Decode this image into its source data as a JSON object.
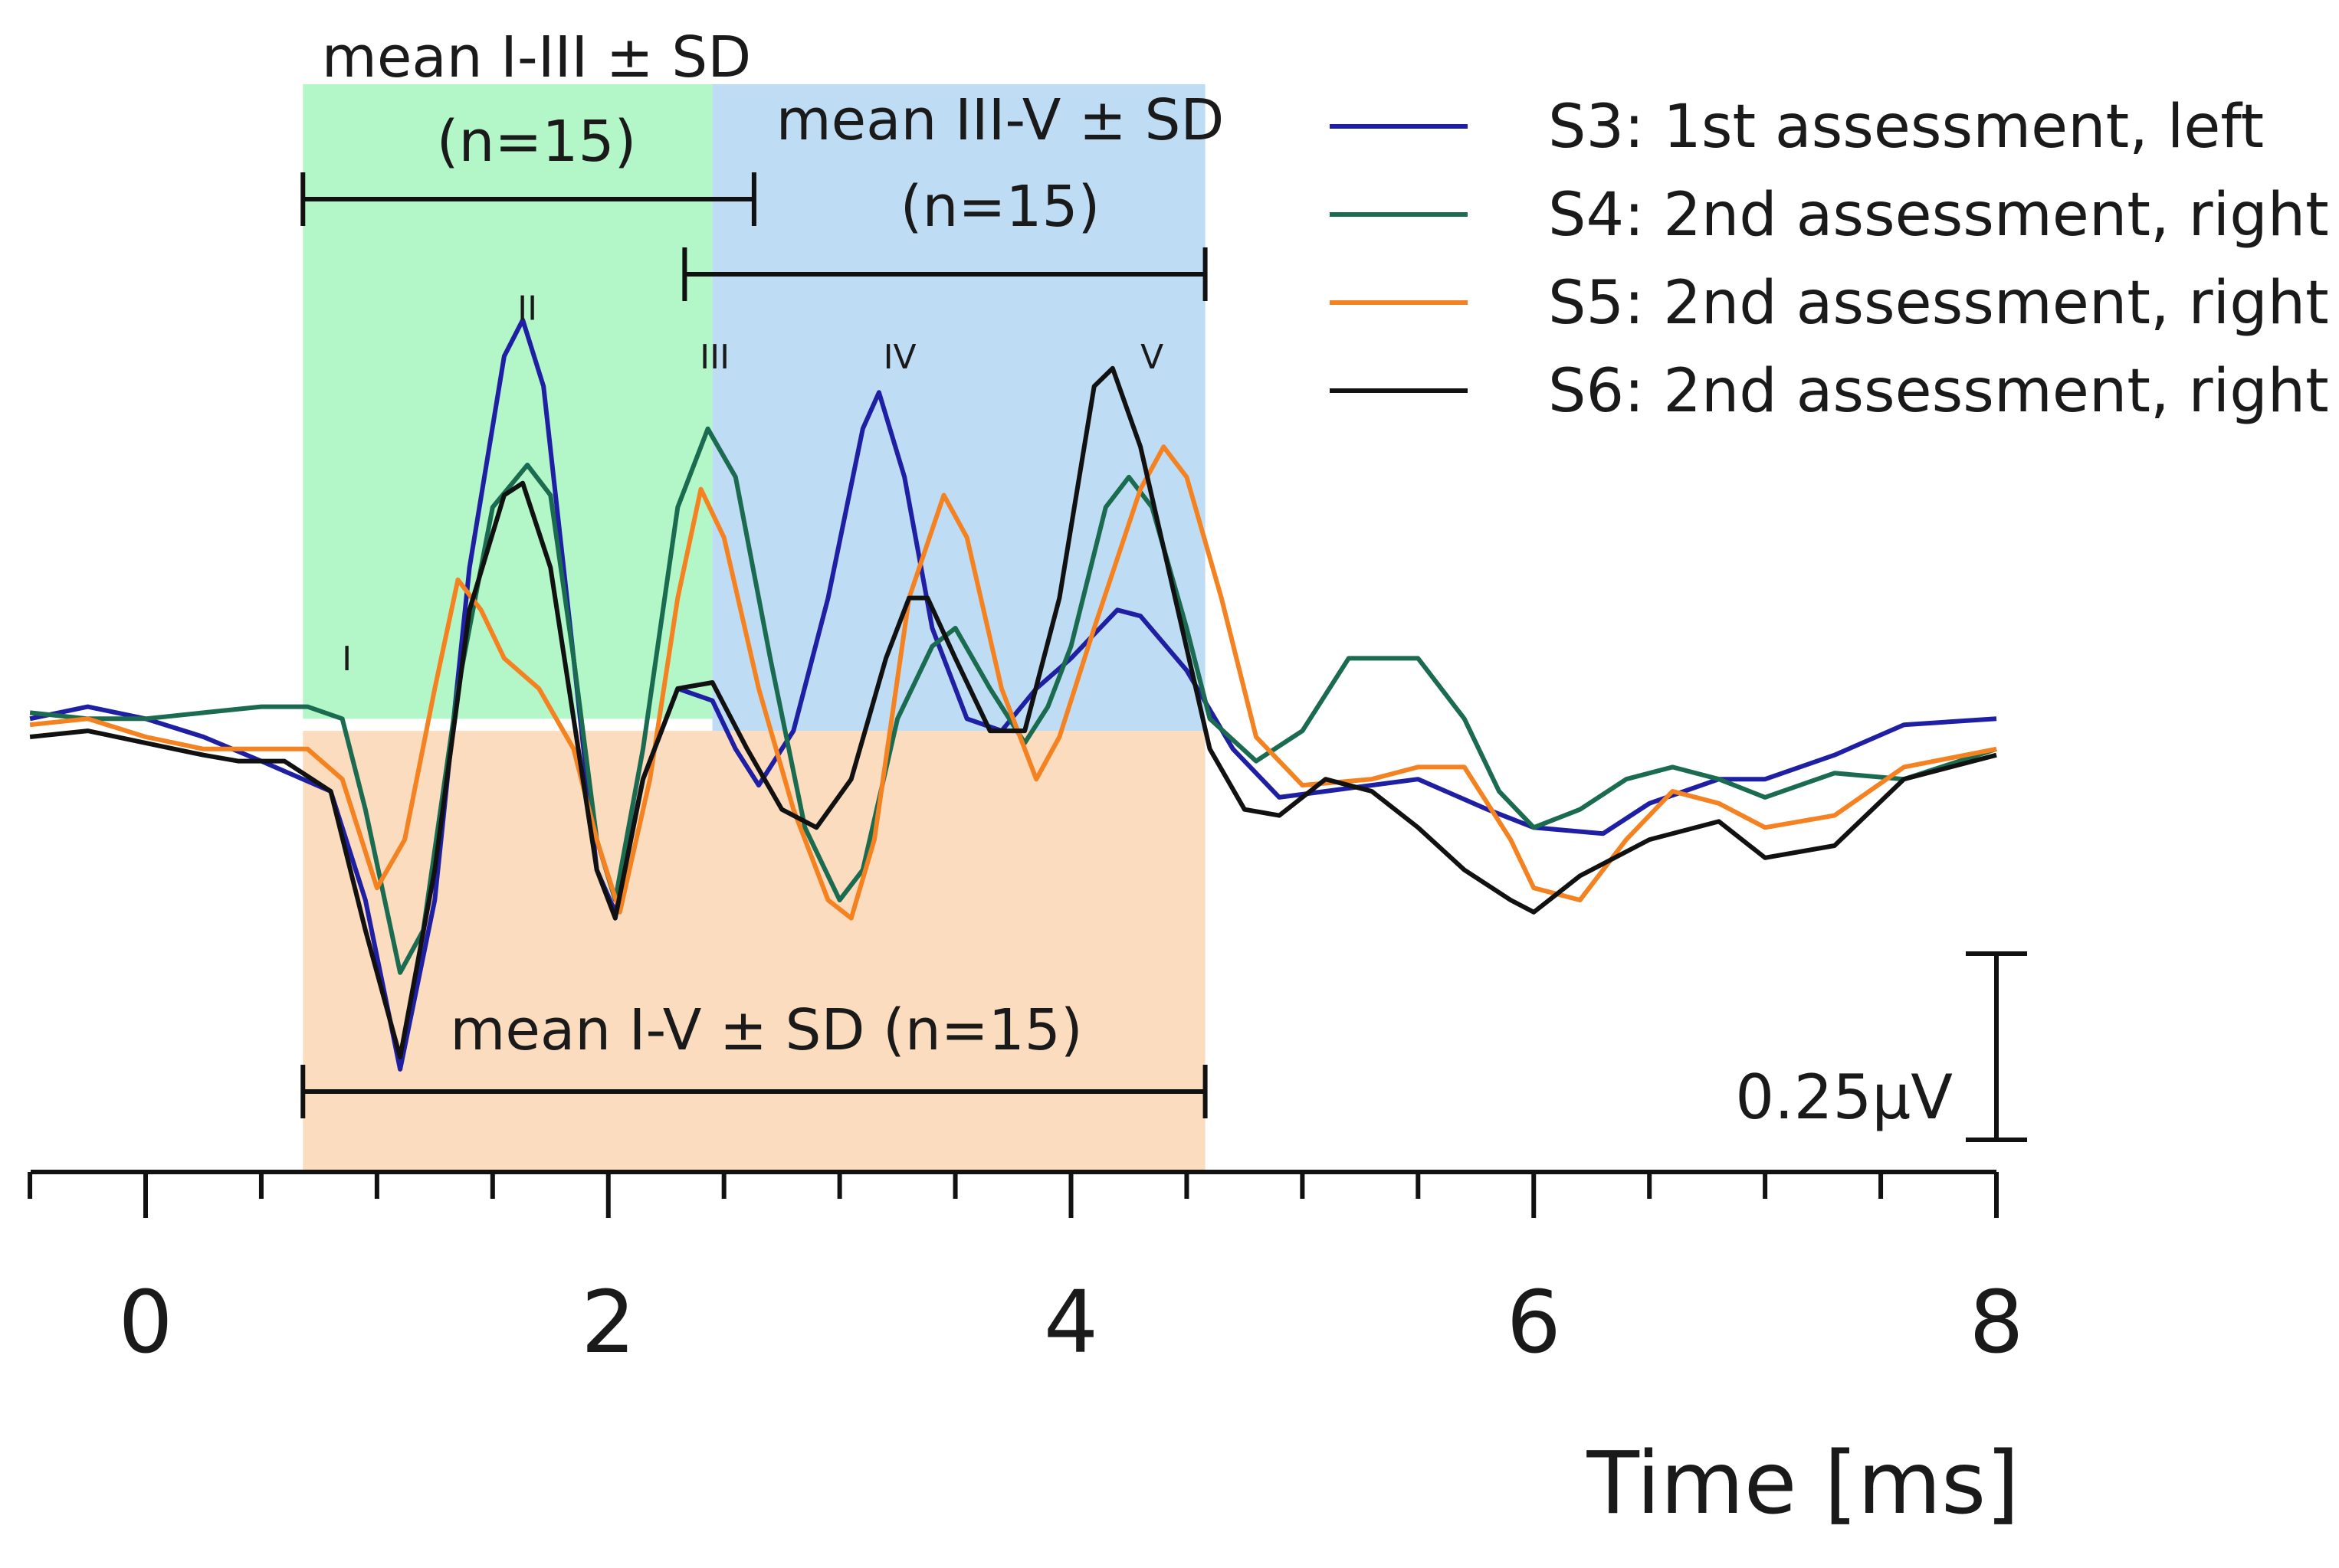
{
  "chart_data": {
    "type": "line",
    "title": "",
    "xlabel": "Time  [ms]",
    "ylabel": "",
    "xlim": [
      -0.5,
      8
    ],
    "ylim": [
      -0.75,
      1.05
    ],
    "x_ticks": [
      0,
      2,
      4,
      6,
      8
    ],
    "x_minor_step": 0.5,
    "grid": false,
    "legend_position": "top-right",
    "scale_bar": {
      "label": "0.25µV",
      "value_uV": 0.25
    },
    "regions": [
      {
        "label_lines": [
          "mean I-III ± SD",
          "(n=15)"
        ],
        "color": "#b3f7c9",
        "x": [
          0.68,
          2.45
        ],
        "y": [
          0.0,
          1.05
        ],
        "bracket": [
          0.68,
          2.63
        ]
      },
      {
        "label_lines": [
          "mean III-V ± SD",
          "(n=15)"
        ],
        "color": "#bfdcf5",
        "x": [
          2.45,
          4.58
        ],
        "y": [
          -0.02,
          1.05
        ],
        "bracket": [
          2.33,
          4.58
        ]
      },
      {
        "label_lines": [
          "mean I-V ± SD (n=15)"
        ],
        "color": "#fcdcbe",
        "x": [
          0.68,
          4.58
        ],
        "y": [
          -0.75,
          -0.02
        ],
        "bracket": [
          0.68,
          4.58
        ]
      }
    ],
    "peak_labels": [
      {
        "text": "I",
        "x": 0.87,
        "y": 0.08
      },
      {
        "text": "II",
        "x": 1.65,
        "y": 0.66
      },
      {
        "text": "III",
        "x": 2.46,
        "y": 0.58
      },
      {
        "text": "IV",
        "x": 3.26,
        "y": 0.58
      },
      {
        "text": "V",
        "x": 4.35,
        "y": 0.58
      }
    ],
    "series": [
      {
        "name": "S3: 1st  assessment, left",
        "color": "#1f1fa3",
        "points": [
          [
            -0.5,
            0.0
          ],
          [
            -0.25,
            0.02
          ],
          [
            0.0,
            0.0
          ],
          [
            0.25,
            -0.03
          ],
          [
            0.5,
            -0.07
          ],
          [
            0.8,
            -0.12
          ],
          [
            0.95,
            -0.3
          ],
          [
            1.1,
            -0.58
          ],
          [
            1.25,
            -0.3
          ],
          [
            1.4,
            0.25
          ],
          [
            1.55,
            0.6
          ],
          [
            1.63,
            0.66
          ],
          [
            1.72,
            0.55
          ],
          [
            1.85,
            0.1
          ],
          [
            1.95,
            -0.25
          ],
          [
            2.03,
            -0.32
          ],
          [
            2.15,
            -0.1
          ],
          [
            2.3,
            0.05
          ],
          [
            2.45,
            0.03
          ],
          [
            2.55,
            -0.05
          ],
          [
            2.65,
            -0.11
          ],
          [
            2.8,
            -0.02
          ],
          [
            2.95,
            0.2
          ],
          [
            3.1,
            0.48
          ],
          [
            3.17,
            0.54
          ],
          [
            3.28,
            0.4
          ],
          [
            3.4,
            0.15
          ],
          [
            3.55,
            0.0
          ],
          [
            3.7,
            -0.02
          ],
          [
            3.85,
            0.05
          ],
          [
            4.0,
            0.1
          ],
          [
            4.2,
            0.18
          ],
          [
            4.3,
            0.17
          ],
          [
            4.5,
            0.08
          ],
          [
            4.7,
            -0.05
          ],
          [
            4.9,
            -0.13
          ],
          [
            5.1,
            -0.12
          ],
          [
            5.3,
            -0.11
          ],
          [
            5.5,
            -0.1
          ],
          [
            5.8,
            -0.15
          ],
          [
            6.0,
            -0.18
          ],
          [
            6.3,
            -0.19
          ],
          [
            6.5,
            -0.14
          ],
          [
            6.8,
            -0.1
          ],
          [
            7.0,
            -0.1
          ],
          [
            7.3,
            -0.06
          ],
          [
            7.6,
            -0.01
          ],
          [
            8.0,
            0.0
          ]
        ]
      },
      {
        "name": "S4: 2nd assessment, right",
        "color": "#1a6b4f",
        "points": [
          [
            -0.5,
            0.01
          ],
          [
            -0.25,
            0.0
          ],
          [
            0.0,
            0.0
          ],
          [
            0.25,
            0.01
          ],
          [
            0.5,
            0.02
          ],
          [
            0.7,
            0.02
          ],
          [
            0.85,
            0.0
          ],
          [
            0.95,
            -0.15
          ],
          [
            1.1,
            -0.42
          ],
          [
            1.2,
            -0.35
          ],
          [
            1.35,
            0.05
          ],
          [
            1.5,
            0.35
          ],
          [
            1.65,
            0.42
          ],
          [
            1.75,
            0.37
          ],
          [
            1.85,
            0.1
          ],
          [
            1.95,
            -0.2
          ],
          [
            2.03,
            -0.3
          ],
          [
            2.15,
            -0.05
          ],
          [
            2.3,
            0.35
          ],
          [
            2.43,
            0.48
          ],
          [
            2.55,
            0.4
          ],
          [
            2.7,
            0.1
          ],
          [
            2.85,
            -0.18
          ],
          [
            3.0,
            -0.3
          ],
          [
            3.1,
            -0.25
          ],
          [
            3.25,
            0.0
          ],
          [
            3.4,
            0.12
          ],
          [
            3.5,
            0.15
          ],
          [
            3.65,
            0.05
          ],
          [
            3.8,
            -0.04
          ],
          [
            3.9,
            0.02
          ],
          [
            4.0,
            0.12
          ],
          [
            4.15,
            0.35
          ],
          [
            4.25,
            0.4
          ],
          [
            4.35,
            0.35
          ],
          [
            4.5,
            0.15
          ],
          [
            4.6,
            0.0
          ],
          [
            4.8,
            -0.07
          ],
          [
            5.0,
            -0.02
          ],
          [
            5.2,
            0.1
          ],
          [
            5.5,
            0.1
          ],
          [
            5.7,
            0.0
          ],
          [
            5.85,
            -0.12
          ],
          [
            6.0,
            -0.18
          ],
          [
            6.2,
            -0.15
          ],
          [
            6.4,
            -0.1
          ],
          [
            6.6,
            -0.08
          ],
          [
            6.8,
            -0.1
          ],
          [
            7.0,
            -0.13
          ],
          [
            7.3,
            -0.09
          ],
          [
            7.6,
            -0.1
          ],
          [
            8.0,
            -0.05
          ]
        ]
      },
      {
        "name": "S5: 2nd assessment, right",
        "color": "#f58220",
        "points": [
          [
            -0.5,
            -0.01
          ],
          [
            -0.25,
            0.0
          ],
          [
            0.0,
            -0.03
          ],
          [
            0.25,
            -0.05
          ],
          [
            0.5,
            -0.05
          ],
          [
            0.7,
            -0.05
          ],
          [
            0.85,
            -0.1
          ],
          [
            1.0,
            -0.28
          ],
          [
            1.12,
            -0.2
          ],
          [
            1.25,
            0.05
          ],
          [
            1.35,
            0.23
          ],
          [
            1.45,
            0.18
          ],
          [
            1.55,
            0.1
          ],
          [
            1.7,
            0.05
          ],
          [
            1.85,
            -0.05
          ],
          [
            1.95,
            -0.2
          ],
          [
            2.05,
            -0.32
          ],
          [
            2.18,
            -0.1
          ],
          [
            2.3,
            0.2
          ],
          [
            2.4,
            0.38
          ],
          [
            2.5,
            0.3
          ],
          [
            2.65,
            0.05
          ],
          [
            2.8,
            -0.15
          ],
          [
            2.95,
            -0.3
          ],
          [
            3.05,
            -0.33
          ],
          [
            3.15,
            -0.2
          ],
          [
            3.3,
            0.2
          ],
          [
            3.45,
            0.37
          ],
          [
            3.55,
            0.3
          ],
          [
            3.7,
            0.05
          ],
          [
            3.85,
            -0.1
          ],
          [
            3.95,
            -0.03
          ],
          [
            4.1,
            0.15
          ],
          [
            4.3,
            0.38
          ],
          [
            4.4,
            0.45
          ],
          [
            4.5,
            0.4
          ],
          [
            4.65,
            0.2
          ],
          [
            4.8,
            -0.03
          ],
          [
            5.0,
            -0.11
          ],
          [
            5.3,
            -0.1
          ],
          [
            5.5,
            -0.08
          ],
          [
            5.7,
            -0.08
          ],
          [
            5.9,
            -0.2
          ],
          [
            6.0,
            -0.28
          ],
          [
            6.2,
            -0.3
          ],
          [
            6.4,
            -0.2
          ],
          [
            6.6,
            -0.12
          ],
          [
            6.8,
            -0.14
          ],
          [
            7.0,
            -0.18
          ],
          [
            7.3,
            -0.16
          ],
          [
            7.6,
            -0.08
          ],
          [
            8.0,
            -0.05
          ]
        ]
      },
      {
        "name": "S6: 2nd assessment, right",
        "color": "#111111",
        "points": [
          [
            -0.5,
            -0.03
          ],
          [
            -0.25,
            -0.02
          ],
          [
            0.0,
            -0.04
          ],
          [
            0.25,
            -0.06
          ],
          [
            0.4,
            -0.07
          ],
          [
            0.6,
            -0.07
          ],
          [
            0.8,
            -0.12
          ],
          [
            0.95,
            -0.35
          ],
          [
            1.1,
            -0.56
          ],
          [
            1.25,
            -0.25
          ],
          [
            1.4,
            0.18
          ],
          [
            1.55,
            0.37
          ],
          [
            1.63,
            0.39
          ],
          [
            1.75,
            0.25
          ],
          [
            1.85,
            0.0
          ],
          [
            1.95,
            -0.25
          ],
          [
            2.03,
            -0.33
          ],
          [
            2.15,
            -0.1
          ],
          [
            2.3,
            0.05
          ],
          [
            2.45,
            0.06
          ],
          [
            2.6,
            -0.05
          ],
          [
            2.75,
            -0.15
          ],
          [
            2.9,
            -0.18
          ],
          [
            3.05,
            -0.1
          ],
          [
            3.2,
            0.1
          ],
          [
            3.3,
            0.2
          ],
          [
            3.38,
            0.2
          ],
          [
            3.5,
            0.1
          ],
          [
            3.65,
            -0.02
          ],
          [
            3.8,
            -0.02
          ],
          [
            3.95,
            0.2
          ],
          [
            4.1,
            0.55
          ],
          [
            4.18,
            0.58
          ],
          [
            4.3,
            0.45
          ],
          [
            4.45,
            0.2
          ],
          [
            4.6,
            -0.05
          ],
          [
            4.75,
            -0.15
          ],
          [
            4.9,
            -0.16
          ],
          [
            5.1,
            -0.1
          ],
          [
            5.3,
            -0.12
          ],
          [
            5.5,
            -0.18
          ],
          [
            5.7,
            -0.25
          ],
          [
            5.9,
            -0.3
          ],
          [
            6.0,
            -0.32
          ],
          [
            6.2,
            -0.26
          ],
          [
            6.5,
            -0.2
          ],
          [
            6.8,
            -0.17
          ],
          [
            7.0,
            -0.23
          ],
          [
            7.3,
            -0.21
          ],
          [
            7.6,
            -0.1
          ],
          [
            8.0,
            -0.06
          ]
        ]
      }
    ]
  }
}
